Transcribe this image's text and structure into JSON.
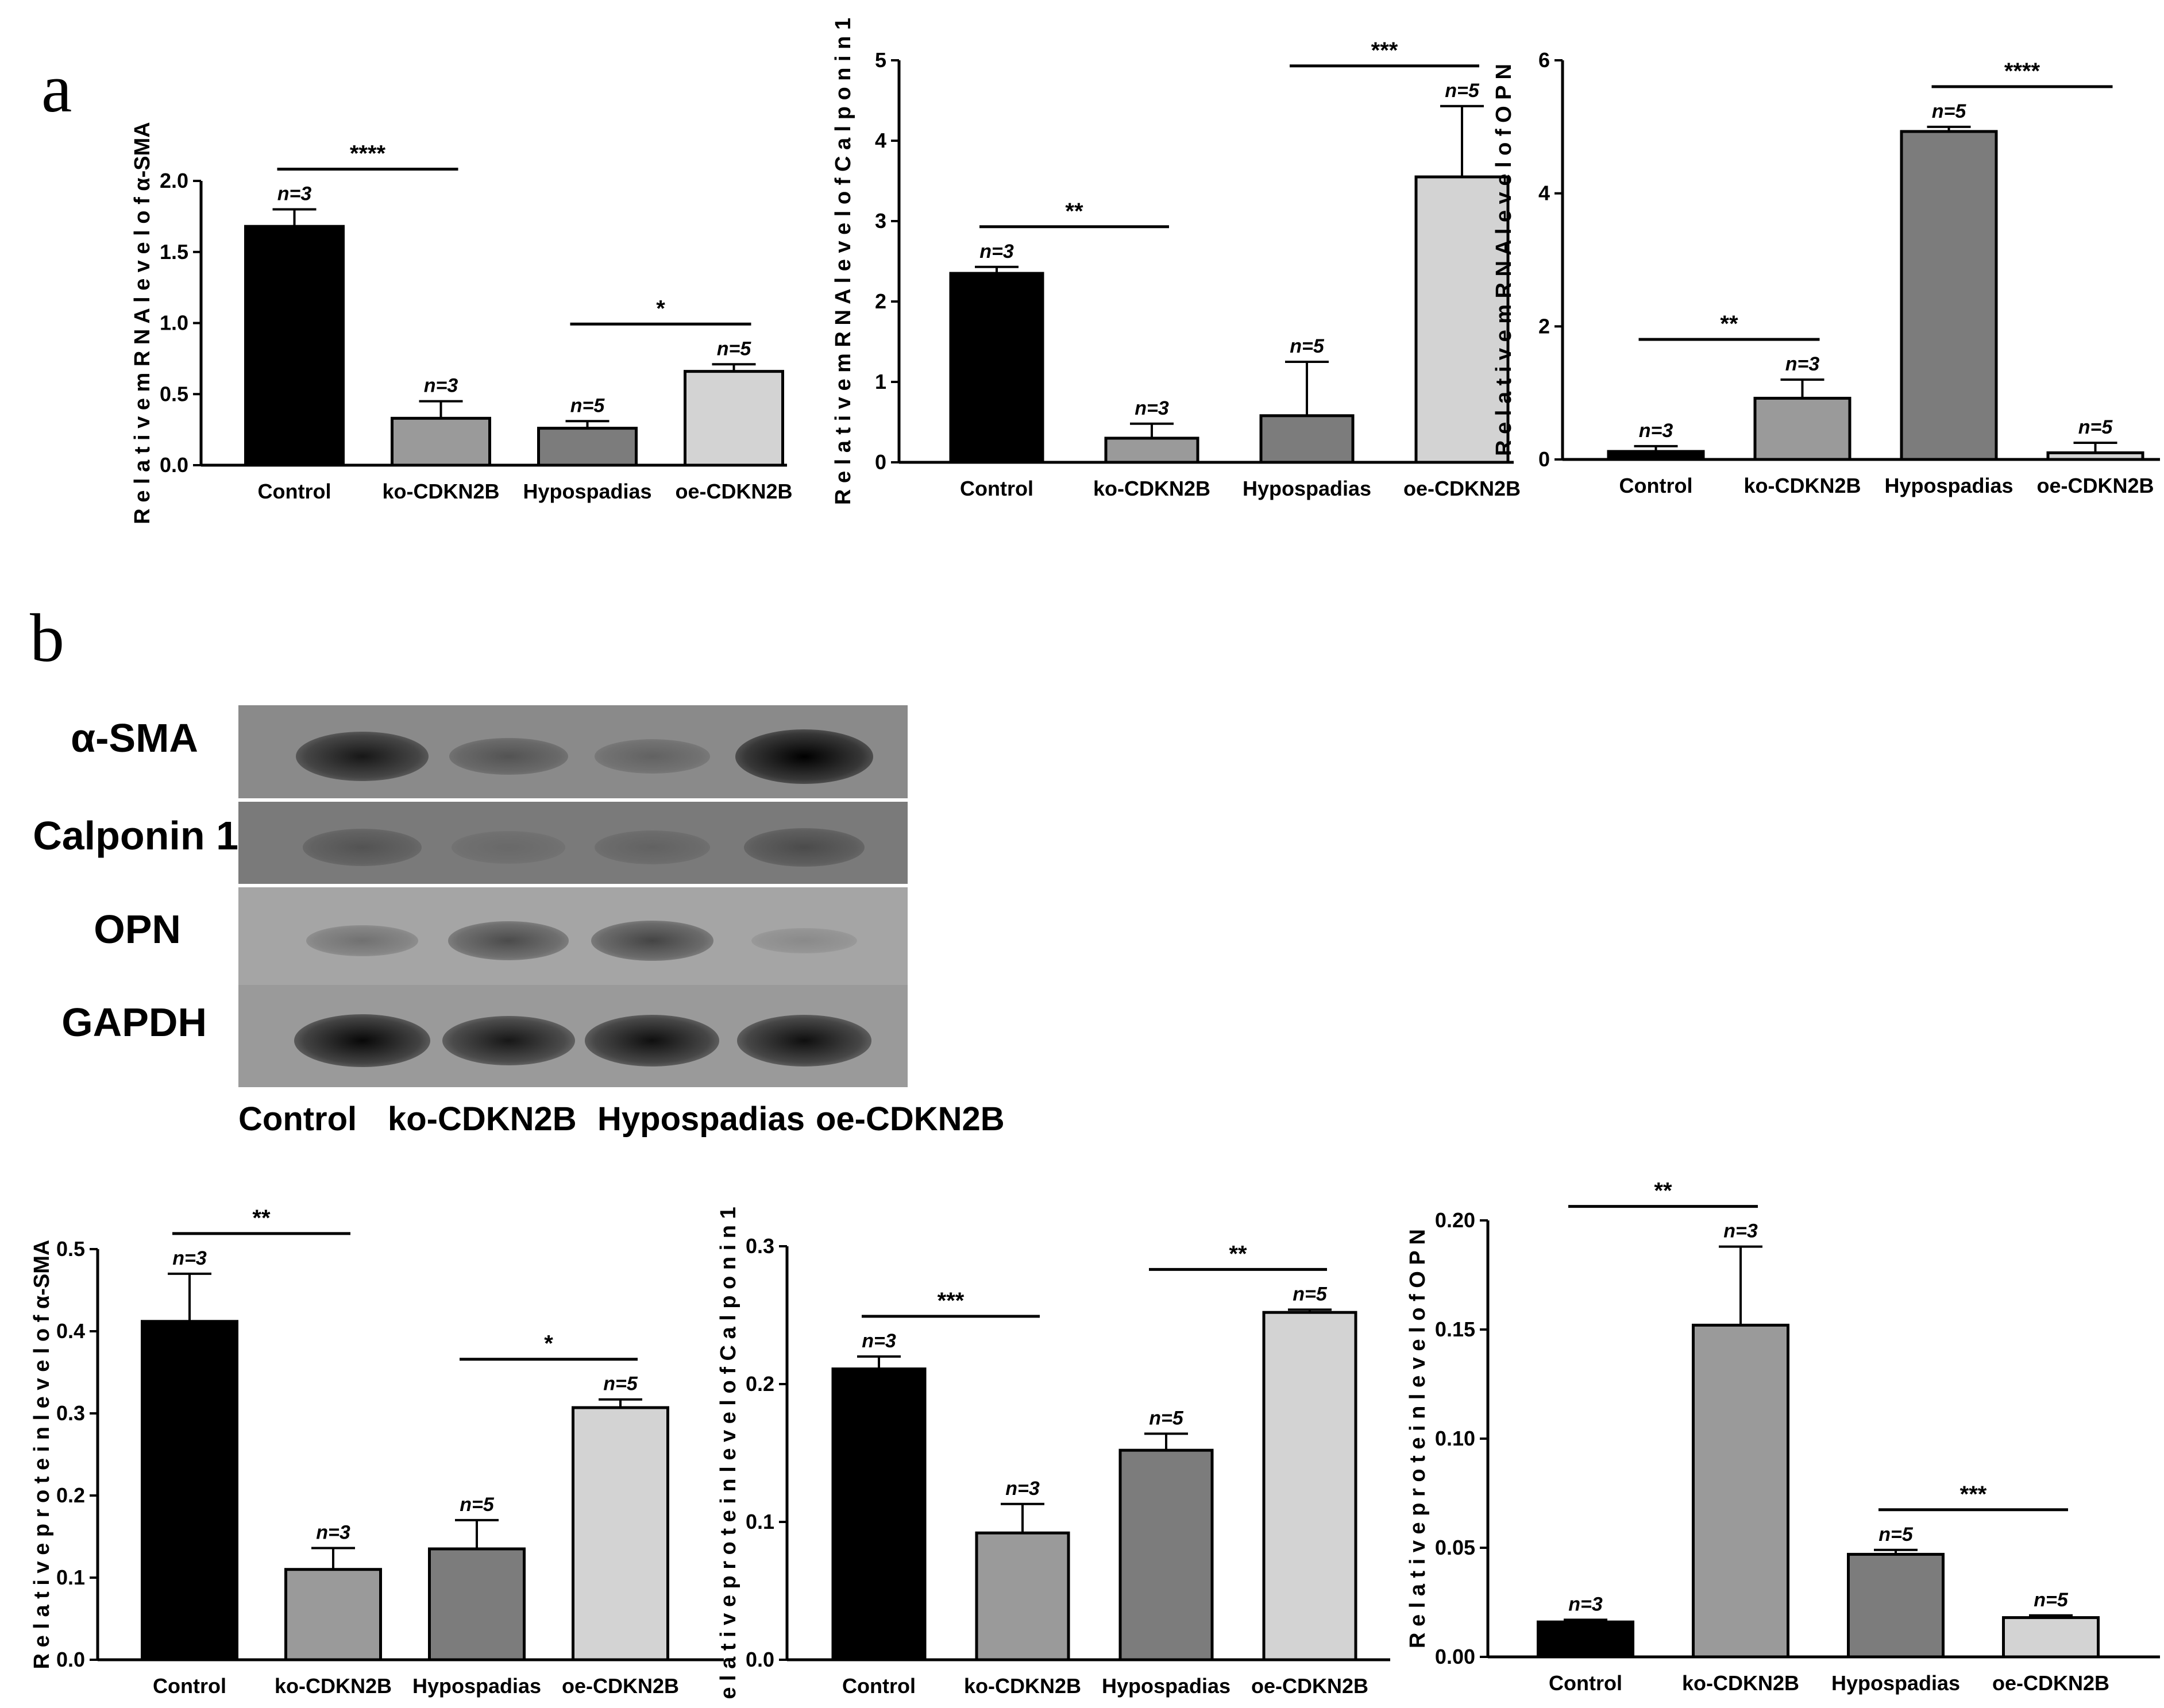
{
  "panels": {
    "a": "a",
    "b": "b"
  },
  "western_blot": {
    "rows": [
      {
        "label": "α-SMA",
        "bg": "#8a8a8a",
        "intensity": [
          0.85,
          0.45,
          0.35,
          1.0
        ]
      },
      {
        "label": "Calponin 1",
        "bg": "#7a7a7a",
        "intensity": [
          0.45,
          0.3,
          0.35,
          0.5
        ]
      },
      {
        "label": "OPN",
        "bg": "#a5a5a5",
        "intensity": [
          0.25,
          0.5,
          0.55,
          0.08
        ]
      },
      {
        "label": "GAPDH",
        "bg": "#9a9a9a",
        "intensity": [
          0.95,
          0.85,
          0.9,
          0.9
        ]
      }
    ],
    "lanes": [
      "Control",
      "ko-CDKN2B",
      "Hypospadias",
      "oe-CDKN2B"
    ]
  },
  "chart_data": [
    {
      "type": "bar",
      "categories": [
        "Control",
        "ko-CDKN2B",
        "Hypospadias",
        "oe-CDKN2B"
      ],
      "values": [
        1.68,
        0.33,
        0.26,
        0.66
      ],
      "errors": [
        0.12,
        0.12,
        0.05,
        0.05
      ],
      "n_labels": [
        "n=3",
        "n=3",
        "n=5",
        "n=5"
      ],
      "ylabel": "R e l a t i v e m R N A  l e v e l  o f  α-SMA",
      "ylim": [
        0,
        2.0
      ],
      "yticks": [
        "0.0",
        "0.5",
        "1.0",
        "1.5",
        "2.0"
      ],
      "significance": [
        {
          "from": 0,
          "to": 1,
          "label": "****"
        },
        {
          "from": 2,
          "to": 3,
          "label": "*"
        }
      ],
      "colors": [
        "#000000",
        "#9a9a9a",
        "#7c7c7c",
        "#d3d3d3"
      ]
    },
    {
      "type": "bar",
      "categories": [
        "Control",
        "ko-CDKN2B",
        "Hypospadias",
        "oe-CDKN2B"
      ],
      "values": [
        2.35,
        0.3,
        0.58,
        3.55
      ],
      "errors": [
        0.08,
        0.18,
        0.67,
        0.88
      ],
      "n_labels": [
        "n=3",
        "n=3",
        "n=5",
        "n=5"
      ],
      "ylabel": "R e l a t i v e  m R N A  l e v e l  o f  C a l p o n i n  1",
      "ylim": [
        0,
        5
      ],
      "yticks": [
        "0",
        "1",
        "2",
        "3",
        "4",
        "5"
      ],
      "significance": [
        {
          "from": 0,
          "to": 1,
          "label": "**"
        },
        {
          "from": 2,
          "to": 3,
          "label": "***"
        }
      ],
      "colors": [
        "#000000",
        "#9a9a9a",
        "#7c7c7c",
        "#d3d3d3"
      ]
    },
    {
      "type": "bar",
      "categories": [
        "Control",
        "ko-CDKN2B",
        "Hypospadias",
        "oe-CDKN2B"
      ],
      "values": [
        0.12,
        0.92,
        4.93,
        0.1
      ],
      "errors": [
        0.08,
        0.28,
        0.07,
        0.15
      ],
      "n_labels": [
        "n=3",
        "n=3",
        "n=5",
        "n=5"
      ],
      "ylabel": "R e l a t i v e  m R N A  l e v e l  o f  O P N",
      "ylim": [
        0,
        6
      ],
      "yticks": [
        "0",
        "2",
        "4",
        "6"
      ],
      "significance": [
        {
          "from": 0,
          "to": 1,
          "label": "**"
        },
        {
          "from": 2,
          "to": 3,
          "label": "****"
        }
      ],
      "colors": [
        "#000000",
        "#9a9a9a",
        "#7c7c7c",
        "#d3d3d3"
      ]
    },
    {
      "type": "bar",
      "categories": [
        "Control",
        "ko-CDKN2B",
        "Hypospadias",
        "oe-CDKN2B"
      ],
      "values": [
        0.412,
        0.11,
        0.135,
        0.307
      ],
      "errors": [
        0.058,
        0.026,
        0.035,
        0.01
      ],
      "n_labels": [
        "n=3",
        "n=3",
        "n=5",
        "n=5"
      ],
      "ylabel": "R e l a t i v e p r o t e i n l e v e l o f α-SMA",
      "ylim": [
        0,
        0.5
      ],
      "yticks": [
        "0.0",
        "0.1",
        "0.2",
        "0.3",
        "0.4",
        "0.5"
      ],
      "significance": [
        {
          "from": 0,
          "to": 1,
          "label": "**"
        },
        {
          "from": 2,
          "to": 3,
          "label": "*"
        }
      ],
      "colors": [
        "#000000",
        "#9a9a9a",
        "#7c7c7c",
        "#d3d3d3"
      ]
    },
    {
      "type": "bar",
      "categories": [
        "Control",
        "ko-CDKN2B",
        "Hypospadias",
        "oe-CDKN2B"
      ],
      "values": [
        0.211,
        0.092,
        0.152,
        0.252
      ],
      "errors": [
        0.009,
        0.021,
        0.012,
        0.002
      ],
      "n_labels": [
        "n=3",
        "n=3",
        "n=5",
        "n=5"
      ],
      "ylabel": "e l a t i v e  p r o t e i n  l e v e l  o f  C a l p o n i n  1",
      "ylim": [
        0,
        0.3
      ],
      "yticks": [
        "0.0",
        "0.1",
        "0.2",
        "0.3"
      ],
      "significance": [
        {
          "from": 0,
          "to": 1,
          "label": "***"
        },
        {
          "from": 2,
          "to": 3,
          "label": "**"
        }
      ],
      "colors": [
        "#000000",
        "#9a9a9a",
        "#7c7c7c",
        "#d3d3d3"
      ]
    },
    {
      "type": "bar",
      "categories": [
        "Control",
        "ko-CDKN2B",
        "Hypospadias",
        "oe-CDKN2B"
      ],
      "values": [
        0.016,
        0.152,
        0.047,
        0.018
      ],
      "errors": [
        0.001,
        0.036,
        0.002,
        0.001
      ],
      "n_labels": [
        "n=3",
        "n=3",
        "n=5",
        "n=5"
      ],
      "ylabel": "R e l a t i v e  p r o t e i n  l e v e l  o f  O P N",
      "ylim": [
        0,
        0.2
      ],
      "yticks": [
        "0.00",
        "0.05",
        "0.10",
        "0.15",
        "0.20"
      ],
      "significance": [
        {
          "from": 0,
          "to": 1,
          "label": "**"
        },
        {
          "from": 2,
          "to": 3,
          "label": "***"
        }
      ],
      "colors": [
        "#000000",
        "#9a9a9a",
        "#7c7c7c",
        "#d3d3d3"
      ]
    }
  ]
}
